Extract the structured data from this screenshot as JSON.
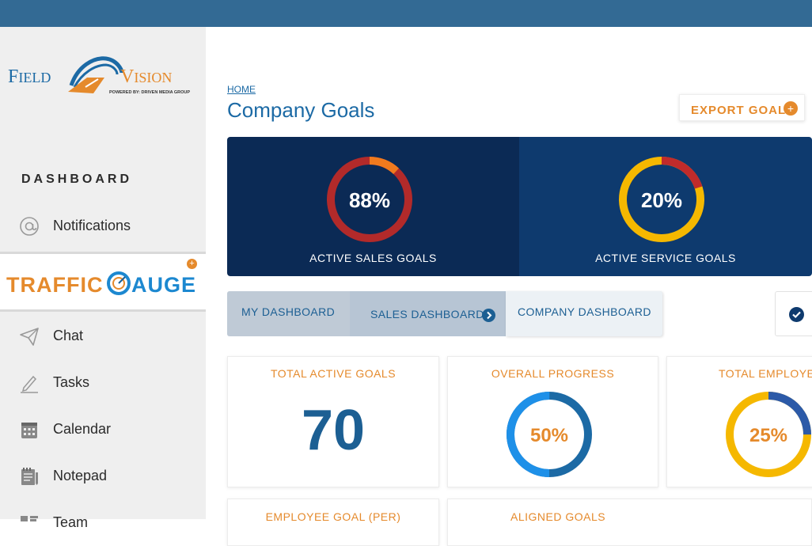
{
  "colors": {
    "accent": "#e58a2c",
    "brand_blue": "#1c6aa5",
    "topbar": "#336a94",
    "banner_left": "#0b2a55",
    "banner_right": "#0e3a6e"
  },
  "sidebar": {
    "logo": {
      "name_left": "Field",
      "name_right": "Vision",
      "tagline": "POWERED BY: DRIVEN MEDIA GROUP"
    },
    "section_heading": "DASHBOARD",
    "items": [
      {
        "label": "Notifications",
        "icon": "at-icon"
      },
      {
        "label": "Chat",
        "icon": "paper-plane-icon"
      },
      {
        "label": "Tasks",
        "icon": "pencil-icon"
      },
      {
        "label": "Calendar",
        "icon": "calendar-icon"
      },
      {
        "label": "Notepad",
        "icon": "notepad-icon"
      },
      {
        "label": "Team",
        "icon": "team-icon"
      }
    ],
    "traffic_gauge": {
      "text_left": "TRAFFIC",
      "text_right": "AUGE",
      "badge": "+"
    }
  },
  "header": {
    "breadcrumb": "HOME",
    "title": "Company Goals",
    "export_label": "EXPORT GOAL",
    "export_icon": "+"
  },
  "banner": {
    "sales": {
      "value": "88%",
      "label": "ACTIVE SALES GOALS",
      "progress": 0.88,
      "colors": [
        "#b22a2a",
        "#f07a1e"
      ]
    },
    "service": {
      "value": "20%",
      "label": "ACTIVE SERVICE  GOALS",
      "progress": 0.2,
      "colors": [
        "#f5b800",
        "#c02b2b"
      ]
    }
  },
  "tabs": [
    {
      "label": "MY DASHBOARD"
    },
    {
      "label": "SALES DASHBOARD"
    },
    {
      "label": "COMPANY DASHBOARD"
    }
  ],
  "cards": {
    "total_active_goals": {
      "title": "TOTAL ACTIVE GOALS",
      "value": "70"
    },
    "overall_progress": {
      "title": "OVERALL PROGRESS",
      "value": "50%",
      "progress": 0.5
    },
    "total_employee": {
      "title": "TOTAL EMPLOYE",
      "value": "25%",
      "progress": 0.25
    },
    "employee_goal": {
      "title": "EMPLOYEE GOAL (PER)"
    },
    "aligned_goals": {
      "title": "ALIGNED GOALS"
    }
  }
}
